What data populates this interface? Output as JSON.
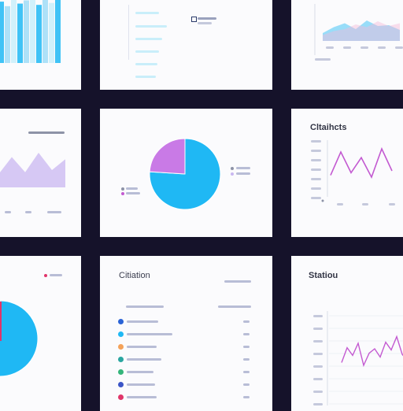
{
  "colors": {
    "background": "#15122a",
    "panel": "#fbfbfd",
    "cyan": "#1fb8f4",
    "lavender": "#c9b7f0",
    "magenta": "#c35ad1",
    "pink": "#f3b8d8",
    "red": "#e0356a",
    "orange": "#f4a259",
    "green": "#34b57a"
  },
  "panels": {
    "middle_center": {
      "chart_type": "pie"
    },
    "middle_right": {
      "title": "Cltaihcts"
    },
    "bottom_center": {
      "title": "Citiation",
      "rows": [
        {
          "icon": "blue-dot-icon"
        },
        {
          "icon": "cyan-dot-icon"
        },
        {
          "icon": "orange-dot-icon"
        },
        {
          "icon": "teal-dot-icon"
        },
        {
          "icon": "green-dot-icon"
        },
        {
          "icon": "blue-dot-icon"
        },
        {
          "icon": "red-dot-icon"
        }
      ]
    },
    "bottom_right": {
      "title": "Statiou"
    }
  },
  "chart_data": [
    {
      "type": "bar",
      "panel": "top-left",
      "categories": [
        "",
        "",
        "",
        "",
        "",
        "",
        "",
        "",
        "",
        ""
      ],
      "values": [
        95,
        88,
        100,
        92,
        97,
        100,
        90,
        98,
        93,
        99
      ],
      "ylim": [
        0,
        100
      ]
    },
    {
      "type": "area",
      "panel": "top-right",
      "series": [
        {
          "values": [
            20,
            35,
            45,
            30,
            52,
            38,
            40,
            28
          ]
        },
        {
          "values": [
            15,
            25,
            30,
            42,
            35,
            50,
            38,
            45
          ]
        }
      ],
      "ylim": [
        0,
        100
      ]
    },
    {
      "type": "area",
      "panel": "middle-left",
      "values": [
        30,
        70,
        35,
        80,
        40,
        65
      ],
      "ylim": [
        0,
        100
      ]
    },
    {
      "type": "pie",
      "panel": "middle-center",
      "values": [
        76,
        24
      ]
    },
    {
      "type": "line",
      "panel": "middle-right",
      "values": [
        48,
        85,
        52,
        76,
        45,
        90,
        55
      ],
      "ylim": [
        0,
        100
      ]
    },
    {
      "type": "pie",
      "panel": "bottom-left",
      "values": [
        80,
        20
      ]
    },
    {
      "type": "line",
      "panel": "bottom-right",
      "values": [
        35,
        62,
        48,
        70,
        30,
        52,
        60,
        45,
        72,
        58,
        82,
        50,
        38
      ],
      "ylim": [
        0,
        100
      ]
    }
  ]
}
